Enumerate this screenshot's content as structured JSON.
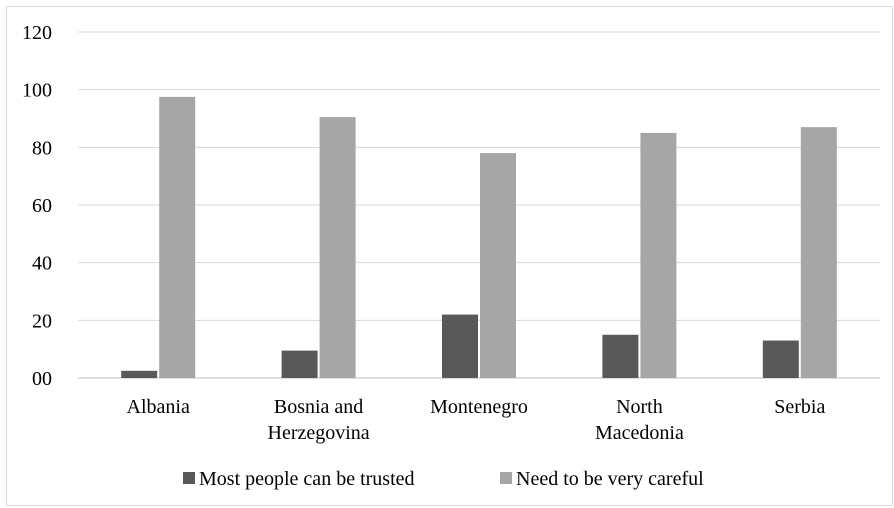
{
  "chart_data": {
    "type": "bar",
    "categories": [
      [
        "Albania"
      ],
      [
        "Bosnia and",
        "Herzegovina"
      ],
      [
        "Montenegro"
      ],
      [
        "North",
        "Macedonia"
      ],
      [
        "Serbia"
      ]
    ],
    "series": [
      {
        "name": "Most people can be trusted",
        "values": [
          2.5,
          9.5,
          22,
          15,
          13
        ],
        "color": "#595959"
      },
      {
        "name": "Need to be very careful",
        "values": [
          97.5,
          90.5,
          78,
          85,
          87
        ],
        "color": "#a6a6a6"
      }
    ],
    "ylim": [
      0,
      120
    ],
    "yticks": [
      0,
      20,
      40,
      60,
      80,
      100,
      120
    ],
    "ytick_labels": [
      "00",
      "20",
      "40",
      "60",
      "80",
      "100",
      "120"
    ],
    "grid": true,
    "gridline_color": "#d9d9d9",
    "legend_position": "bottom",
    "title": "",
    "xlabel": "",
    "ylabel": ""
  }
}
